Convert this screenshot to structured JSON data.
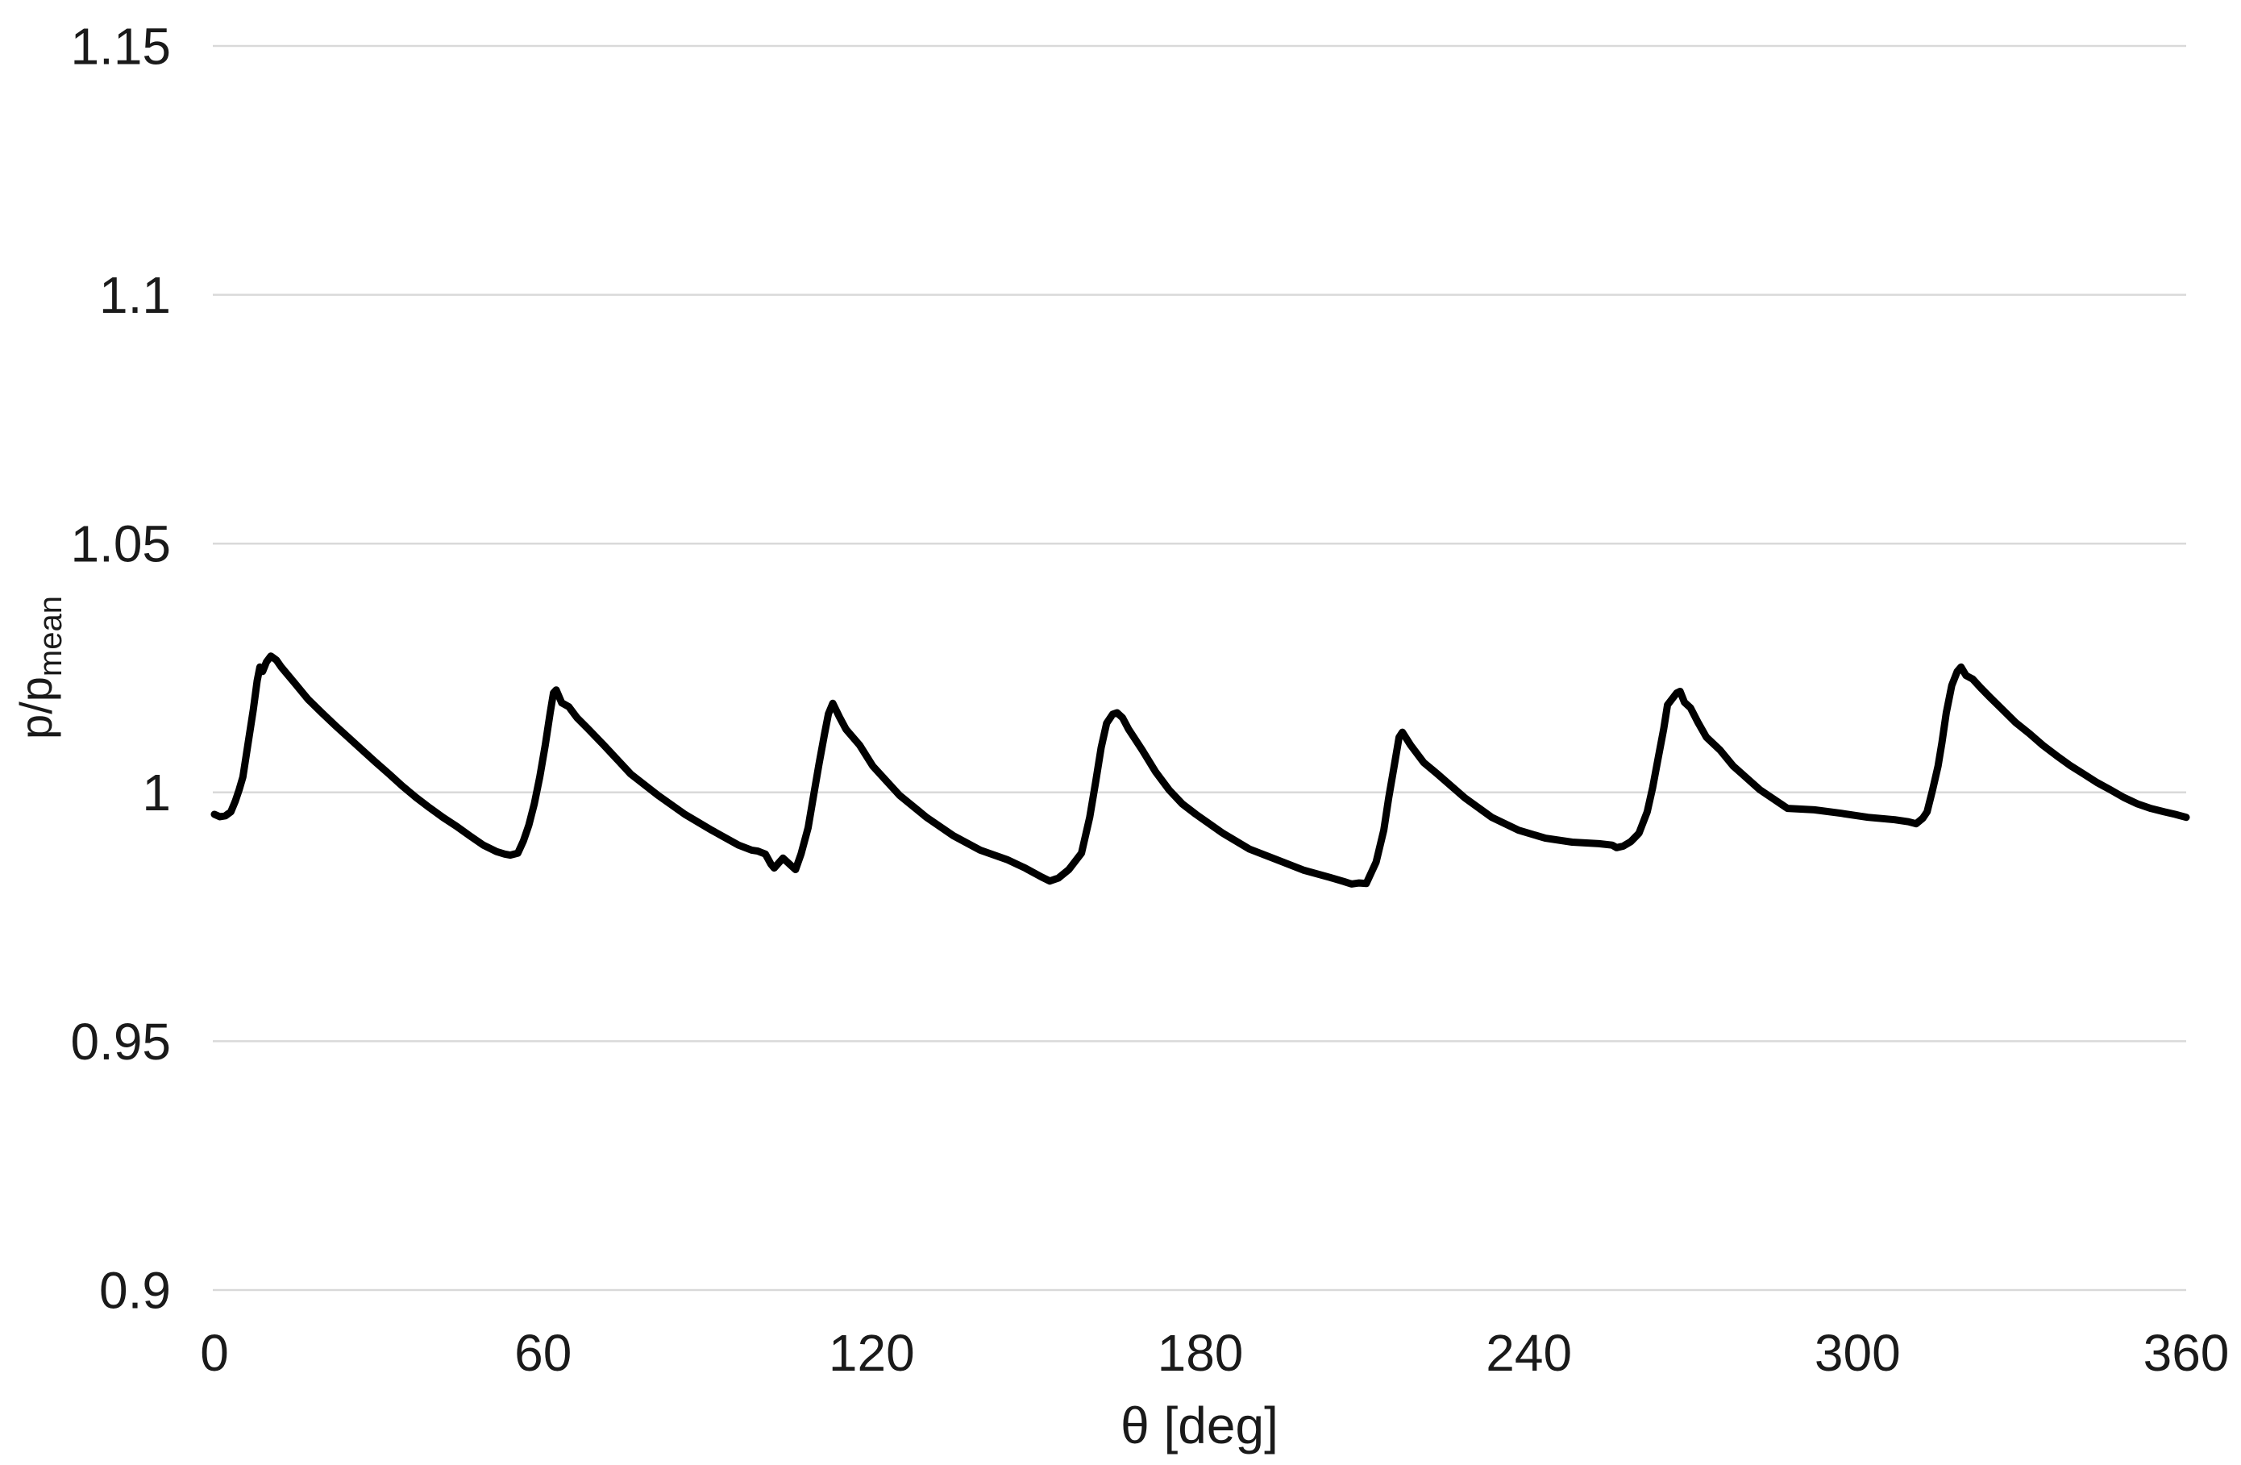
{
  "chart_data": {
    "type": "line",
    "title": "",
    "xlabel": "θ [deg]",
    "ylabel": {
      "main": "p/p",
      "sub": "mean"
    },
    "x_axis": {
      "min": 0,
      "max": 360,
      "tick_values": [
        0,
        60,
        120,
        180,
        240,
        300,
        360
      ],
      "tick_labels": [
        "0",
        "60",
        "120",
        "180",
        "240",
        "300",
        "360"
      ]
    },
    "y_axis": {
      "min": 0.9,
      "max": 1.15,
      "tick_values": [
        0.9,
        0.95,
        1.0,
        1.05,
        1.1,
        1.15
      ],
      "tick_labels": [
        "0.9",
        "0.95",
        "1",
        "1.05",
        "1.1",
        "1.15"
      ]
    },
    "grid": {
      "horizontal": true,
      "vertical": false,
      "color": "#d9d9d9"
    },
    "legend": "none",
    "background_color": "#ffffff",
    "text_color": "#1a1a1a",
    "series": [
      {
        "name": "p/p_mean",
        "color": "#000000",
        "points": [
          [
            0,
            0.9956
          ],
          [
            1,
            0.9951
          ],
          [
            2,
            0.9953
          ],
          [
            3,
            0.9961
          ],
          [
            3.8,
            0.9982
          ],
          [
            4.5,
            1.0005
          ],
          [
            5.2,
            1.0031
          ],
          [
            6.1,
            1.0095
          ],
          [
            7.1,
            1.0166
          ],
          [
            7.8,
            1.0224
          ],
          [
            8.3,
            1.0252
          ],
          [
            8.8,
            1.0243
          ],
          [
            9.5,
            1.0262
          ],
          [
            10.3,
            1.0274
          ],
          [
            11.3,
            1.0266
          ],
          [
            12.2,
            1.0252
          ],
          [
            14.7,
            1.0219
          ],
          [
            17.1,
            1.0187
          ],
          [
            19.6,
            1.016
          ],
          [
            22.1,
            1.0134
          ],
          [
            24.5,
            1.011
          ],
          [
            27,
            1.0085
          ],
          [
            29.4,
            1.0061
          ],
          [
            31.9,
            1.0037
          ],
          [
            34.3,
            1.0013
          ],
          [
            36.8,
            0.999
          ],
          [
            39.3,
            0.9969
          ],
          [
            41.7,
            0.995
          ],
          [
            44.2,
            0.9932
          ],
          [
            46.6,
            0.9913
          ],
          [
            49.1,
            0.9894
          ],
          [
            51.5,
            0.9881
          ],
          [
            53,
            0.9876
          ],
          [
            54,
            0.9874
          ],
          [
            55.4,
            0.9878
          ],
          [
            56.4,
            0.9902
          ],
          [
            57.4,
            0.9934
          ],
          [
            58.4,
            0.9977
          ],
          [
            59.4,
            1.0031
          ],
          [
            60.4,
            1.0095
          ],
          [
            61.3,
            1.016
          ],
          [
            61.9,
            1.02
          ],
          [
            62.4,
            1.0206
          ],
          [
            63.4,
            1.018
          ],
          [
            64.7,
            1.0172
          ],
          [
            66.2,
            1.015
          ],
          [
            68.2,
            1.0128
          ],
          [
            71.1,
            1.0095
          ],
          [
            76,
            1.0037
          ],
          [
            81,
            0.9994
          ],
          [
            85.9,
            0.9956
          ],
          [
            90.8,
            0.9924
          ],
          [
            95.7,
            0.9894
          ],
          [
            98.1,
            0.9884
          ],
          [
            99.2,
            0.9882
          ],
          [
            100.6,
            0.9876
          ],
          [
            101.6,
            0.9856
          ],
          [
            102.2,
            0.9848
          ],
          [
            103.8,
            0.9868
          ],
          [
            105.5,
            0.9851
          ],
          [
            106.1,
            0.9845
          ],
          [
            107.1,
            0.9876
          ],
          [
            108.4,
            0.9929
          ],
          [
            109.4,
            0.9994
          ],
          [
            110.4,
            1.0058
          ],
          [
            111.4,
            1.0118
          ],
          [
            112.1,
            1.0158
          ],
          [
            112.9,
            1.0179
          ],
          [
            114.1,
            1.0152
          ],
          [
            115.3,
            1.0127
          ],
          [
            117.8,
            1.0095
          ],
          [
            120.2,
            1.0053
          ],
          [
            125.1,
            0.9994
          ],
          [
            130,
            0.995
          ],
          [
            134.9,
            0.9913
          ],
          [
            139.8,
            0.9884
          ],
          [
            144.7,
            0.9865
          ],
          [
            148,
            0.9848
          ],
          [
            151,
            0.983
          ],
          [
            152.5,
            0.9822
          ],
          [
            154.1,
            0.9828
          ],
          [
            156,
            0.9845
          ],
          [
            158.3,
            0.9878
          ],
          [
            159.8,
            0.995
          ],
          [
            160.9,
            1.0021
          ],
          [
            161.9,
            1.009
          ],
          [
            162.9,
            1.0139
          ],
          [
            164,
            1.0157
          ],
          [
            164.8,
            1.016
          ],
          [
            165.8,
            1.015
          ],
          [
            166.9,
            1.0127
          ],
          [
            169.4,
            1.0085
          ],
          [
            171.8,
            1.0042
          ],
          [
            174.3,
            1.0005
          ],
          [
            176.7,
            0.9977
          ],
          [
            179.2,
            0.9956
          ],
          [
            184.1,
            0.9918
          ],
          [
            189,
            0.9886
          ],
          [
            193.9,
            0.9865
          ],
          [
            198.8,
            0.9844
          ],
          [
            203.7,
            0.9829
          ],
          [
            206.2,
            0.9821
          ],
          [
            207.6,
            0.9816
          ],
          [
            209,
            0.9818
          ],
          [
            210.3,
            0.9817
          ],
          [
            212.1,
            0.986
          ],
          [
            213.5,
            0.9924
          ],
          [
            214.4,
            0.9989
          ],
          [
            215.4,
            1.0053
          ],
          [
            216.3,
            1.0111
          ],
          [
            216.9,
            1.0121
          ],
          [
            218.4,
            1.0095
          ],
          [
            220.8,
            1.006
          ],
          [
            223.3,
            1.0037
          ],
          [
            228.3,
            0.9989
          ],
          [
            233.2,
            0.995
          ],
          [
            238.1,
            0.9924
          ],
          [
            243,
            0.9908
          ],
          [
            247.9,
            0.99
          ],
          [
            252.8,
            0.9897
          ],
          [
            255.2,
            0.9894
          ],
          [
            256,
            0.9889
          ],
          [
            257.2,
            0.9892
          ],
          [
            258.6,
            0.9901
          ],
          [
            260.1,
            0.9918
          ],
          [
            261.6,
            0.9961
          ],
          [
            262.6,
            1.001
          ],
          [
            263.6,
            1.0069
          ],
          [
            264.6,
            1.0127
          ],
          [
            265.3,
            1.0176
          ],
          [
            267,
            1.02
          ],
          [
            267.6,
            1.0203
          ],
          [
            268.4,
            1.0181
          ],
          [
            269.5,
            1.017
          ],
          [
            270.9,
            1.014
          ],
          [
            272.4,
            1.0111
          ],
          [
            274.9,
            1.0085
          ],
          [
            277.3,
            1.0053
          ],
          [
            282.2,
            1.0005
          ],
          [
            287.2,
            0.9968
          ],
          [
            292.1,
            0.9965
          ],
          [
            297,
            0.9958
          ],
          [
            301.9,
            0.995
          ],
          [
            306.8,
            0.9945
          ],
          [
            309.3,
            0.9941
          ],
          [
            310.7,
            0.9937
          ],
          [
            311.9,
            0.9948
          ],
          [
            312.7,
            0.9961
          ],
          [
            313.7,
            1.0005
          ],
          [
            314.7,
            1.0053
          ],
          [
            315.4,
            1.01
          ],
          [
            316.2,
            1.016
          ],
          [
            317.2,
            1.0215
          ],
          [
            318.2,
            1.0243
          ],
          [
            318.9,
            1.0252
          ],
          [
            319.8,
            1.0235
          ],
          [
            321,
            1.0228
          ],
          [
            322.5,
            1.021
          ],
          [
            324.1,
            1.0192
          ],
          [
            326.5,
            1.0166
          ],
          [
            328.9,
            1.014
          ],
          [
            331.4,
            1.0118
          ],
          [
            333.8,
            1.0095
          ],
          [
            336.3,
            1.0074
          ],
          [
            338.7,
            1.0055
          ],
          [
            341.3,
            1.0037
          ],
          [
            343.7,
            1.002
          ],
          [
            346.2,
            1.0005
          ],
          [
            348.6,
            0.999
          ],
          [
            351.1,
            0.9977
          ],
          [
            353.5,
            0.9968
          ],
          [
            356,
            0.9961
          ],
          [
            358,
            0.9956
          ],
          [
            360,
            0.995
          ]
        ]
      }
    ]
  }
}
